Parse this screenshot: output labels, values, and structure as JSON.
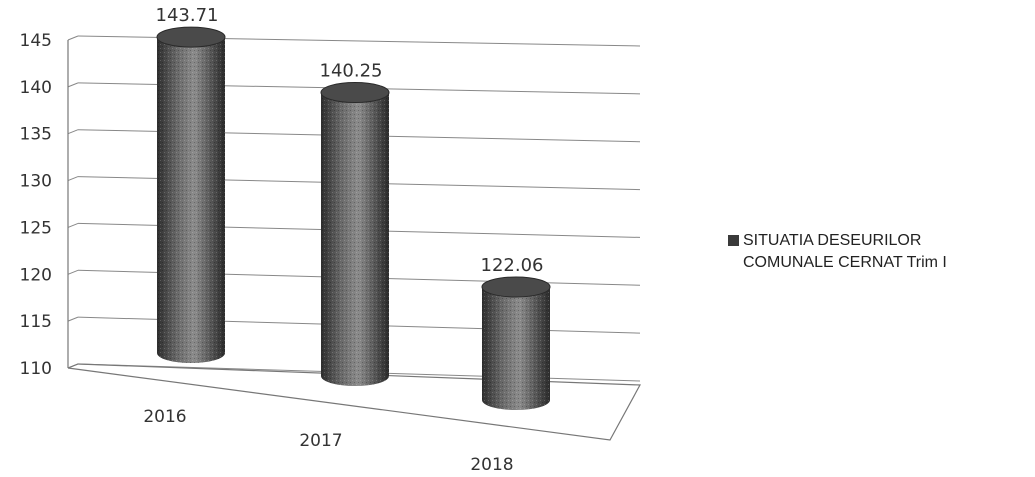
{
  "chart_data": {
    "type": "bar",
    "style": "3d-cylinder",
    "categories": [
      "2016",
      "2017",
      "2018"
    ],
    "series": [
      {
        "name": "SITUATIA DESEURILOR COMUNALE CERNAT Trim I",
        "values": [
          143.71,
          140.25,
          122.06
        ]
      }
    ],
    "data_labels": [
      "143.71",
      "140.25",
      "122.06"
    ],
    "y_ticks": [
      "145",
      "140",
      "135",
      "130",
      "125",
      "120",
      "115",
      "110"
    ],
    "ylim": [
      110,
      145
    ],
    "grid": true,
    "legend_position": "right",
    "colors": {
      "bar": "#3a3a3a",
      "grid": "#888888"
    },
    "title": "",
    "xlabel": "",
    "ylabel": ""
  },
  "legend": {
    "line1": "SITUATIA DESEURILOR",
    "line2": "COMUNALE CERNAT Trim I"
  }
}
